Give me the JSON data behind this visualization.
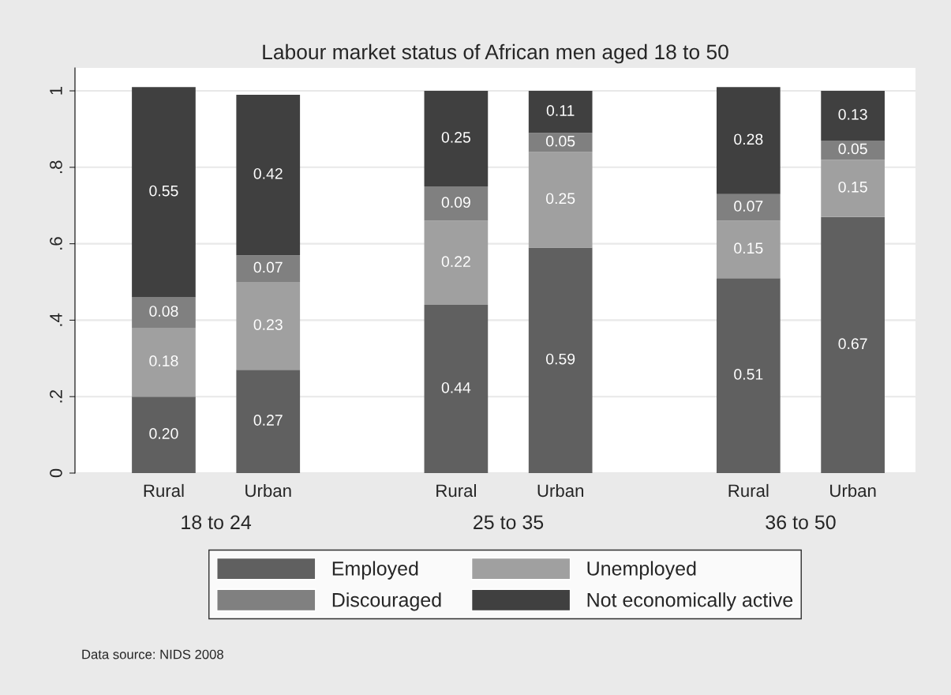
{
  "chart_data": {
    "type": "bar",
    "title": "Labour market status of African men aged 18 to 50",
    "categories": [
      "Rural",
      "Urban",
      "Rural",
      "Urban",
      "Rural",
      "Urban"
    ],
    "stacked": true,
    "series": [
      {
        "name": "Employed",
        "color": "#606060",
        "values": [
          0.2,
          0.27,
          0.44,
          0.59,
          0.51,
          0.67
        ],
        "value_labels": [
          "0.20",
          "0.27",
          "0.44",
          "0.59",
          "0.51",
          "0.67"
        ]
      },
      {
        "name": "Unemployed",
        "color": "#a0a0a0",
        "values": [
          0.18,
          0.23,
          0.22,
          0.25,
          0.15,
          0.15
        ],
        "value_labels": [
          "0.18",
          "0.23",
          "0.22",
          "0.25",
          "0.15",
          "0.15"
        ]
      },
      {
        "name": "Discouraged",
        "color": "#808080",
        "values": [
          0.08,
          0.07,
          0.09,
          0.05,
          0.07,
          0.05
        ],
        "value_labels": [
          "0.08",
          "0.07",
          "0.09",
          "0.05",
          "0.07",
          "0.05"
        ]
      },
      {
        "name": "Not economically active",
        "color": "#404040",
        "values": [
          0.55,
          0.42,
          0.25,
          0.11,
          0.28,
          0.13
        ],
        "value_labels": [
          "0.55",
          "0.42",
          "0.25",
          "0.11",
          "0.28",
          "0.13"
        ]
      }
    ],
    "ylim": [
      0,
      1.06
    ],
    "yticks": [
      0,
      {
        "value": 0.2,
        "label": ".2"
      },
      {
        "value": 0.4,
        "label": ".4"
      },
      {
        "value": 0.6,
        "label": ".6"
      },
      {
        "value": 0.8,
        "label": ".8"
      },
      1
    ],
    "grid": "y",
    "legend": "bottom",
    "annotations": [
      "18 to 24",
      "25 to 35",
      "36 to 50",
      "Data source: NIDS 2008"
    ]
  }
}
